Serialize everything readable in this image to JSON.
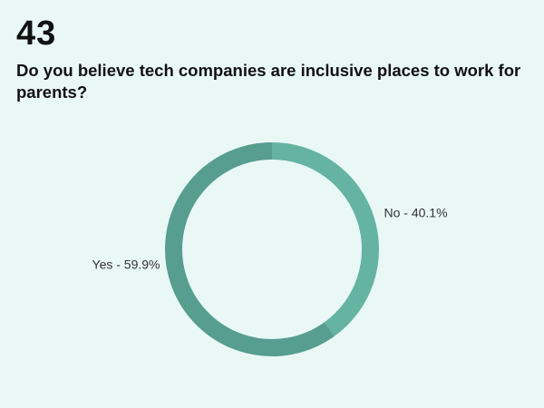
{
  "question_number": "43",
  "chart_data": {
    "type": "pie",
    "donut": true,
    "title": "Do you believe tech companies are inclusive places to work for parents?",
    "slices": [
      {
        "label": "No - 40.1%",
        "name": "No",
        "value": 40.1,
        "color": "#65b3a3"
      },
      {
        "label": "Yes - 59.9%",
        "name": "Yes",
        "value": 59.9,
        "color": "#579d90"
      }
    ],
    "start": "top",
    "direction": "clockwise"
  }
}
